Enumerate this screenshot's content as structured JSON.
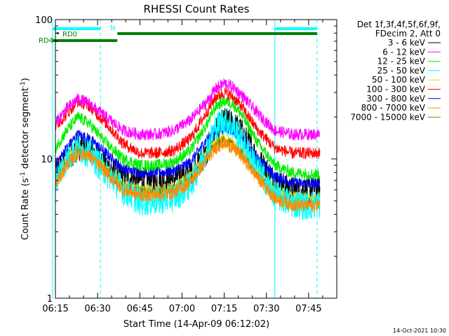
{
  "chart_data": {
    "type": "line",
    "title": "RHESSI Count Rates",
    "xlabel": "Start Time (14-Apr-09 06:12:02)",
    "ylabel": "Count Rate (s⁻¹ detector segment⁻¹)",
    "ylabel_main": "Count Rate (s",
    "ylabel_sup1": "-1",
    "ylabel_mid": " detector segment",
    "ylabel_sup2": "-1",
    "ylabel_end": ")",
    "yscale": "log",
    "ylim": [
      1,
      100
    ],
    "y_ticks": [
      {
        "value": 1,
        "label": "1"
      },
      {
        "value": 10,
        "label": "10"
      },
      {
        "value": 100,
        "label": "100"
      }
    ],
    "xlim_minutes": [
      0,
      100
    ],
    "x_ticks": [
      {
        "value": 0,
        "label": "06:15"
      },
      {
        "value": 15,
        "label": "06:30"
      },
      {
        "value": 30,
        "label": "06:45"
      },
      {
        "value": 45,
        "label": "07:00"
      },
      {
        "value": 60,
        "label": "07:15"
      },
      {
        "value": 75,
        "label": "07:30"
      },
      {
        "value": 90,
        "label": "07:45"
      }
    ],
    "legend_header": [
      "Det 1f,3f,4f,5f,6f,9f,",
      "FDecim 2, Att 0"
    ],
    "legend_position": "right",
    "series": [
      {
        "name": "3 - 6 keV",
        "color": "#000000",
        "x": [
          0,
          4,
          8,
          12,
          18,
          24,
          30,
          36,
          42,
          48,
          54,
          57,
          60,
          63,
          66,
          72,
          78,
          84,
          90,
          94
        ],
        "y": [
          8.0,
          10.0,
          12.0,
          12.0,
          9.0,
          7.5,
          7.0,
          7.0,
          7.2,
          8.0,
          11.0,
          16.0,
          19.0,
          18.0,
          16.0,
          10.0,
          7.0,
          6.0,
          6.0,
          6.2
        ]
      },
      {
        "name": "6 - 12 keV",
        "color": "#ff00ff",
        "x": [
          0,
          4,
          8,
          12,
          18,
          24,
          30,
          36,
          42,
          48,
          54,
          57,
          60,
          63,
          66,
          72,
          78,
          84,
          90,
          94
        ],
        "y": [
          18.0,
          23.0,
          27.0,
          25.0,
          20.0,
          16.0,
          15.0,
          15.0,
          16.0,
          19.0,
          26.0,
          32.0,
          35.0,
          33.0,
          29.0,
          21.0,
          16.0,
          15.0,
          15.0,
          15.0
        ]
      },
      {
        "name": "12 - 25 keV",
        "color": "#00ee00",
        "x": [
          0,
          4,
          8,
          12,
          18,
          24,
          30,
          36,
          42,
          48,
          54,
          57,
          60,
          63,
          66,
          72,
          78,
          84,
          90,
          94
        ],
        "y": [
          12.0,
          16.0,
          20.0,
          18.0,
          13.0,
          10.0,
          9.0,
          9.0,
          9.5,
          11.5,
          18.0,
          24.0,
          26.0,
          25.0,
          21.0,
          13.0,
          9.0,
          8.0,
          7.8,
          7.8
        ]
      },
      {
        "name": "25 - 50 keV",
        "color": "#00ffff",
        "x": [
          0,
          4,
          8,
          12,
          18,
          24,
          30,
          36,
          42,
          48,
          54,
          57,
          60,
          63,
          66,
          72,
          78,
          84,
          90,
          94
        ],
        "y": [
          7.0,
          10.0,
          12.0,
          11.0,
          8.0,
          6.0,
          5.0,
          5.0,
          5.3,
          6.5,
          12.0,
          17.0,
          19.0,
          17.0,
          14.0,
          8.5,
          5.5,
          4.8,
          4.6,
          4.8
        ]
      },
      {
        "name": "50 - 100 keV",
        "color": "#ffd700",
        "x": [
          0,
          4,
          8,
          12,
          18,
          24,
          30,
          36,
          42,
          48,
          54,
          57,
          60,
          63,
          66,
          72,
          78,
          84,
          90,
          94
        ],
        "y": [
          7.5,
          10.0,
          12.0,
          11.0,
          8.5,
          6.5,
          6.0,
          6.0,
          6.2,
          7.5,
          11.0,
          13.0,
          14.0,
          13.0,
          11.5,
          8.0,
          6.0,
          5.3,
          5.2,
          5.3
        ]
      },
      {
        "name": "100 - 300 keV",
        "color": "#ff0000",
        "x": [
          0,
          4,
          8,
          12,
          18,
          24,
          30,
          36,
          42,
          48,
          54,
          57,
          60,
          63,
          66,
          72,
          78,
          84,
          90,
          94
        ],
        "y": [
          17.0,
          21.0,
          26.0,
          24.0,
          18.0,
          13.0,
          11.0,
          11.0,
          11.5,
          14.0,
          22.0,
          28.0,
          30.0,
          28.0,
          24.0,
          16.0,
          12.0,
          11.0,
          11.0,
          11.0
        ]
      },
      {
        "name": "300 - 800 keV",
        "color": "#0000ff",
        "x": [
          0,
          4,
          8,
          12,
          18,
          24,
          30,
          36,
          42,
          48,
          54,
          57,
          60,
          63,
          66,
          72,
          78,
          84,
          90,
          94
        ],
        "y": [
          9.0,
          12.0,
          15.0,
          14.0,
          11.0,
          8.5,
          8.0,
          8.0,
          8.2,
          9.5,
          14.0,
          16.0,
          17.0,
          16.0,
          14.0,
          10.0,
          7.5,
          6.8,
          6.6,
          6.7
        ]
      },
      {
        "name": "800 - 7000 keV",
        "color": "#ff8c00",
        "x": [
          0,
          4,
          8,
          12,
          18,
          24,
          30,
          36,
          42,
          48,
          54,
          57,
          60,
          63,
          66,
          72,
          78,
          84,
          90,
          94
        ],
        "y": [
          6.5,
          9.0,
          11.0,
          10.5,
          8.0,
          6.0,
          5.5,
          5.5,
          5.7,
          6.8,
          10.0,
          12.0,
          13.0,
          12.0,
          10.5,
          7.3,
          5.2,
          4.7,
          4.6,
          4.7
        ]
      },
      {
        "name": "7000 - 15000 keV",
        "color": "#808000",
        "x": [
          0,
          4,
          8,
          12,
          18,
          24,
          30,
          36,
          42,
          48,
          54,
          57,
          60,
          63,
          66,
          72,
          78,
          84,
          90,
          94
        ],
        "y": [
          7.0,
          9.5,
          11.5,
          11.0,
          8.5,
          6.3,
          5.8,
          5.8,
          6.0,
          7.2,
          10.5,
          12.5,
          13.5,
          12.5,
          11.0,
          7.6,
          5.5,
          5.0,
          4.9,
          5.0
        ]
      }
    ],
    "flags": [
      {
        "label": "N",
        "color": "#00ffff",
        "segments": [
          [
            -1,
            16
          ],
          [
            78,
            93
          ]
        ],
        "level": 1
      },
      {
        "label": "RD0",
        "color": "#008000",
        "segments": [
          [
            22,
            93
          ]
        ],
        "level": 2
      },
      {
        "label": "RD4",
        "color": "#008000",
        "segments": [
          [
            -1,
            22
          ]
        ],
        "level": 3
      }
    ],
    "vlines": [
      {
        "x": -1,
        "color": "#00ffff",
        "style": "solid"
      },
      {
        "x": 16,
        "color": "#00ffff",
        "style": "dashed"
      },
      {
        "x": 78,
        "color": "#00ffff",
        "style": "solid"
      },
      {
        "x": 93,
        "color": "#00ffff",
        "style": "dashed"
      }
    ],
    "grid": false
  },
  "footer_timestamp": "14-Oct-2021 10:30"
}
